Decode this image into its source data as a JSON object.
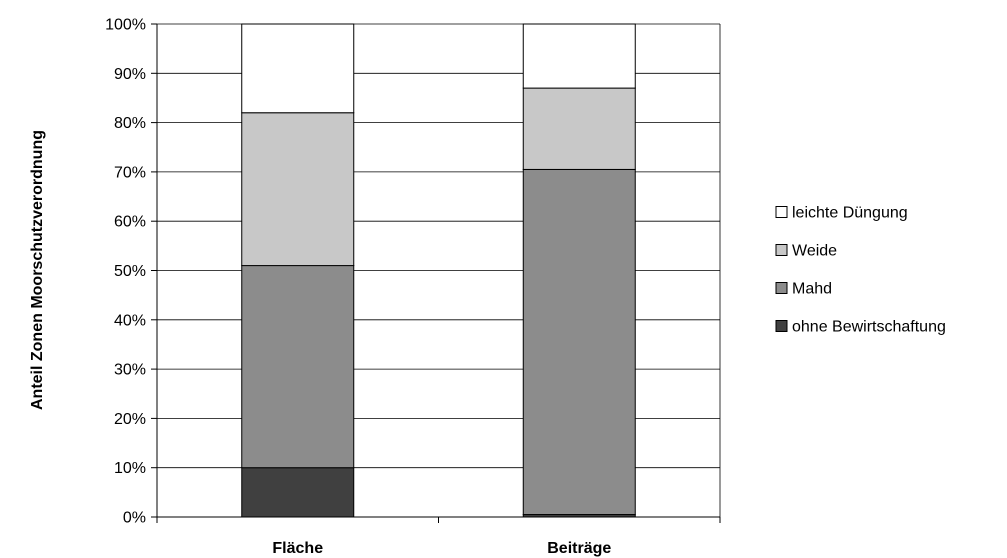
{
  "chart_data": {
    "type": "bar",
    "stacked": true,
    "percent": true,
    "categories": [
      "Fläche",
      "Beiträge"
    ],
    "series": [
      {
        "name": "ohne Bewirtschaftung",
        "values": [
          10,
          0.5
        ],
        "color": "#404040"
      },
      {
        "name": "Mahd",
        "values": [
          41,
          70
        ],
        "color": "#8c8c8c"
      },
      {
        "name": "Weide",
        "values": [
          31,
          16.5
        ],
        "color": "#c8c8c8"
      },
      {
        "name": "leichte Düngung",
        "values": [
          18,
          13
        ],
        "color": "#ffffff"
      }
    ],
    "yticks": [
      "0%",
      "10%",
      "20%",
      "30%",
      "40%",
      "50%",
      "60%",
      "70%",
      "80%",
      "90%",
      "100%"
    ],
    "ylim": [
      0,
      100
    ],
    "xlabel": "",
    "ylabel": "Anteil Zonen Moorschutzverordnung",
    "grid": true,
    "legend_position": "right",
    "legend_order": [
      "leichte Düngung",
      "Weide",
      "Mahd",
      "ohne Bewirtschaftung"
    ]
  }
}
